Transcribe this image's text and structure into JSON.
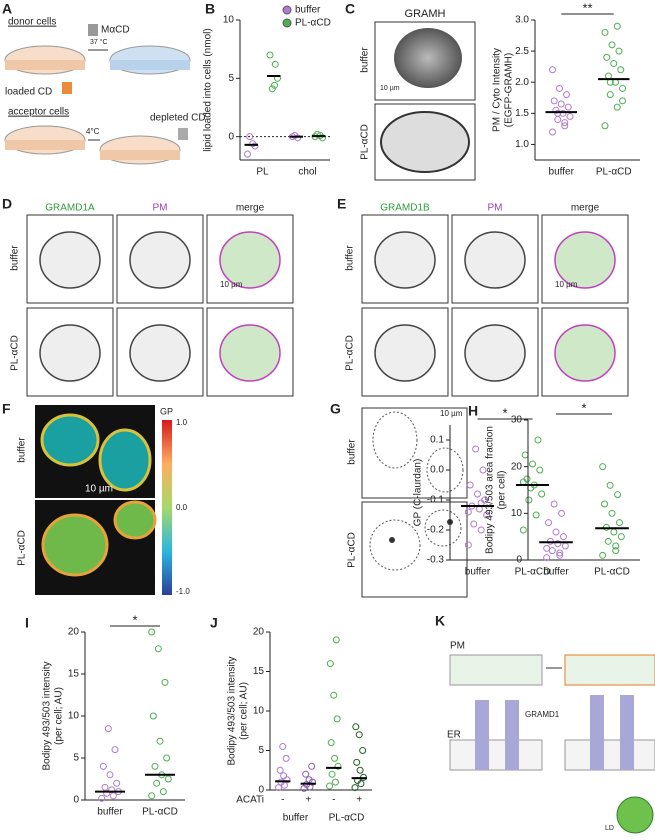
{
  "panels": {
    "A": {
      "letter": "A",
      "donor": "donor cells",
      "reagent": "MαCD",
      "temp1": "37 °C",
      "loaded": "loaded CD",
      "acceptor": "acceptor cells",
      "temp2": "4°C",
      "depleted": "depleted CD"
    },
    "B": {
      "letter": "B",
      "ylabel": "lipid loaded into cells (nmol)",
      "ylim": [
        -2,
        10
      ],
      "yticks": [
        0,
        5,
        10
      ],
      "zero_line": true,
      "legend": [
        {
          "name": "buffer",
          "color": "#b07ad0"
        },
        {
          "name": "PL-αCD",
          "color": "#4caf50"
        }
      ],
      "categories": [
        "PL",
        "chol"
      ],
      "groups": [
        {
          "color": "#b07ad0",
          "points": [
            -1.5,
            -0.6,
            0,
            -0.8
          ],
          "mean": -0.7
        },
        {
          "color": "#4caf50",
          "points": [
            7.0,
            6.2,
            4.1,
            5.0,
            4.4
          ],
          "mean": 5.2
        },
        {
          "color": "#b07ad0",
          "points": [
            0,
            -0.1,
            0.1
          ],
          "mean": 0
        },
        {
          "color": "#4caf50",
          "points": [
            0,
            0.1,
            0.2,
            -0.1
          ],
          "mean": 0.05
        }
      ]
    },
    "C": {
      "letter": "C",
      "image_title": "GRAMH",
      "row1": "buffer",
      "row2": "PL-αCD",
      "scale": "10 µm",
      "ylabel": "PM / Cyto Intensity",
      "ylabel2": "(EGFP-GRAMH)",
      "ylim": [
        0.75,
        3.0
      ],
      "yticks": [
        {
          "value": 1,
          "label": "1.0"
        },
        {
          "value": 1.5,
          "label": "1.5"
        },
        {
          "value": 2,
          "label": "2.0"
        },
        {
          "value": 2.5,
          "label": "2.5"
        },
        {
          "value": 3,
          "label": "3.0"
        }
      ],
      "categories": [
        "buffer",
        "PL-αCD"
      ],
      "sig": "**",
      "groups": [
        {
          "color": "#b07ad0",
          "points": [
            1.2,
            1.3,
            1.4,
            1.45,
            1.5,
            1.55,
            1.6,
            1.65,
            1.7,
            1.8,
            1.9,
            2.2,
            1.35,
            1.5
          ],
          "mean": 1.52
        },
        {
          "color": "#4caf50",
          "points": [
            1.3,
            1.6,
            1.8,
            1.9,
            2.0,
            2.1,
            2.2,
            2.3,
            2.4,
            2.5,
            2.6,
            2.8,
            2.9,
            2.0,
            1.7
          ],
          "mean": 2.05
        }
      ]
    },
    "D": {
      "letter": "D",
      "col1": "GRAMD1A",
      "col2": "PM",
      "col3": "merge",
      "row1": "buffer",
      "row2": "PL-αCD",
      "scale": "10 µm"
    },
    "E": {
      "letter": "E",
      "col1": "GRAMD1B",
      "col2": "PM",
      "col3": "merge",
      "row1": "buffer",
      "row2": "PL-αCD",
      "scale": "10 µm"
    },
    "F": {
      "letter": "F",
      "bar_title": "GP",
      "bar_top": "1.0",
      "bar_mid": "0.0",
      "bar_bottom": "-1.0",
      "row1": "buffer",
      "row2": "PL-αCD",
      "scale": "10 µm",
      "ylabel": "GP (C-laurdan)",
      "ylim": [
        -0.3,
        0.15
      ],
      "yticks": [
        {
          "value": -0.3,
          "label": "-0.3"
        },
        {
          "value": -0.2,
          "label": "-0.2"
        },
        {
          "value": -0.1,
          "label": "-0.1"
        },
        {
          "value": 0,
          "label": "0.0"
        },
        {
          "value": 0.1,
          "label": "0.1"
        }
      ],
      "categories": [
        "buffer",
        "PL-αCD"
      ],
      "sig": "*",
      "groups": [
        {
          "color": "#b07ad0",
          "points": [
            -0.25,
            -0.2,
            -0.18,
            -0.15,
            -0.13,
            -0.12,
            -0.1,
            -0.08,
            -0.05,
            0.0,
            0.07,
            -0.14,
            -0.11
          ],
          "mean": -0.12
        },
        {
          "color": "#4caf50",
          "points": [
            -0.2,
            -0.15,
            -0.1,
            -0.08,
            -0.05,
            -0.03,
            0,
            0.02,
            0.05,
            0.1,
            -0.06,
            -0.04
          ],
          "mean": -0.05
        }
      ]
    },
    "G": {
      "letter": "G",
      "row1": "buffer",
      "row2": "PL-αCD",
      "scale": "10 µm"
    },
    "H": {
      "letter": "H",
      "ylabel": "Bodipy 493/503 area fraction",
      "ylabel2": "(per cell)",
      "ylim": [
        0,
        30
      ],
      "yticks": [
        0,
        10,
        20,
        30
      ],
      "categories": [
        "buffer",
        "PL-αCD"
      ],
      "sig": "*",
      "groups": [
        {
          "color": "#b07ad0",
          "points": [
            0.5,
            1,
            2,
            3,
            3.5,
            4,
            5,
            6,
            8,
            10,
            12,
            2.5,
            1.5
          ],
          "mean": 3.8
        },
        {
          "color": "#4caf50",
          "points": [
            1,
            2,
            4,
            5,
            6,
            7,
            8,
            10,
            12,
            14,
            16,
            20,
            3
          ],
          "mean": 6.8
        }
      ]
    },
    "I": {
      "letter": "I",
      "ylabel": "Bodipy 493/503 intensity",
      "ylabel2": "(per cell; AU)",
      "ylim": [
        0,
        20
      ],
      "yticks": [
        0,
        5,
        10,
        15,
        20
      ],
      "categories": [
        "buffer",
        "PL-αCD"
      ],
      "sig": "*",
      "groups": [
        {
          "color": "#b07ad0",
          "points": [
            0.2,
            0.5,
            0.8,
            1,
            1.2,
            1.5,
            2,
            3,
            4,
            6,
            8.5
          ],
          "mean": 1.0
        },
        {
          "color": "#4caf50",
          "points": [
            0.5,
            1,
            2,
            2.5,
            3,
            4,
            5,
            7,
            10,
            14,
            18,
            20
          ],
          "mean": 3.0
        }
      ]
    },
    "J": {
      "letter": "J",
      "ylabel": "Bodipy 493/503 intensity",
      "ylabel2": "(per cell; AU)",
      "ylim": [
        0,
        20
      ],
      "yticks": [
        0,
        5,
        10,
        15,
        20
      ],
      "treatment": "ACATi",
      "ticklabels": [
        "-",
        "+",
        "-",
        "+"
      ],
      "categories": [
        "buffer",
        "PL-αCD"
      ],
      "groups": [
        {
          "color": "#b07ad0",
          "points": [
            0.3,
            0.6,
            1,
            1.3,
            1.8,
            2.5,
            4,
            5.5
          ],
          "mean": 1.1
        },
        {
          "color": "#8e5bb0",
          "points": [
            0.2,
            0.4,
            0.7,
            1,
            1.3,
            2,
            3
          ],
          "mean": 0.8
        },
        {
          "color": "#4caf50",
          "points": [
            0.5,
            1,
            2,
            3,
            4,
            6,
            9,
            12,
            16,
            19
          ],
          "mean": 2.8
        },
        {
          "color": "#1f5f2a",
          "points": [
            0.3,
            0.8,
            1.2,
            1.6,
            2.5,
            3.5,
            5,
            7,
            8
          ],
          "mean": 1.5
        }
      ]
    },
    "K": {
      "letter": "K",
      "pm": "PM",
      "er": "ER",
      "protein": "GRAMD1",
      "ld": "LD"
    }
  }
}
